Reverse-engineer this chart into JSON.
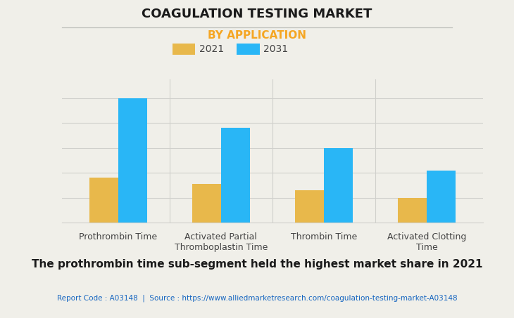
{
  "title": "COAGULATION TESTING MARKET",
  "subtitle": "BY APPLICATION",
  "categories": [
    "Prothrombin Time",
    "Activated Partial\nThromboplastin Time",
    "Thrombin Time",
    "Activated Clotting\nTime"
  ],
  "values_2021": [
    0.36,
    0.31,
    0.26,
    0.2
  ],
  "values_2031": [
    1.0,
    0.76,
    0.6,
    0.42
  ],
  "color_2021": "#E8B84B",
  "color_2031": "#29B6F6",
  "legend_labels": [
    "2021",
    "2031"
  ],
  "background_color": "#F0EFE9",
  "title_color": "#1a1a1a",
  "subtitle_color": "#F5A623",
  "grid_color": "#d0d0cc",
  "bottom_text": "The prothrombin time sub-segment held the highest market share in 2021",
  "source_text": "Report Code : A03148  |  Source : https://www.alliedmarketresearch.com/coagulation-testing-market-A03148",
  "source_color": "#1565C0",
  "bar_width": 0.28,
  "ylim": [
    0,
    1.15
  ]
}
